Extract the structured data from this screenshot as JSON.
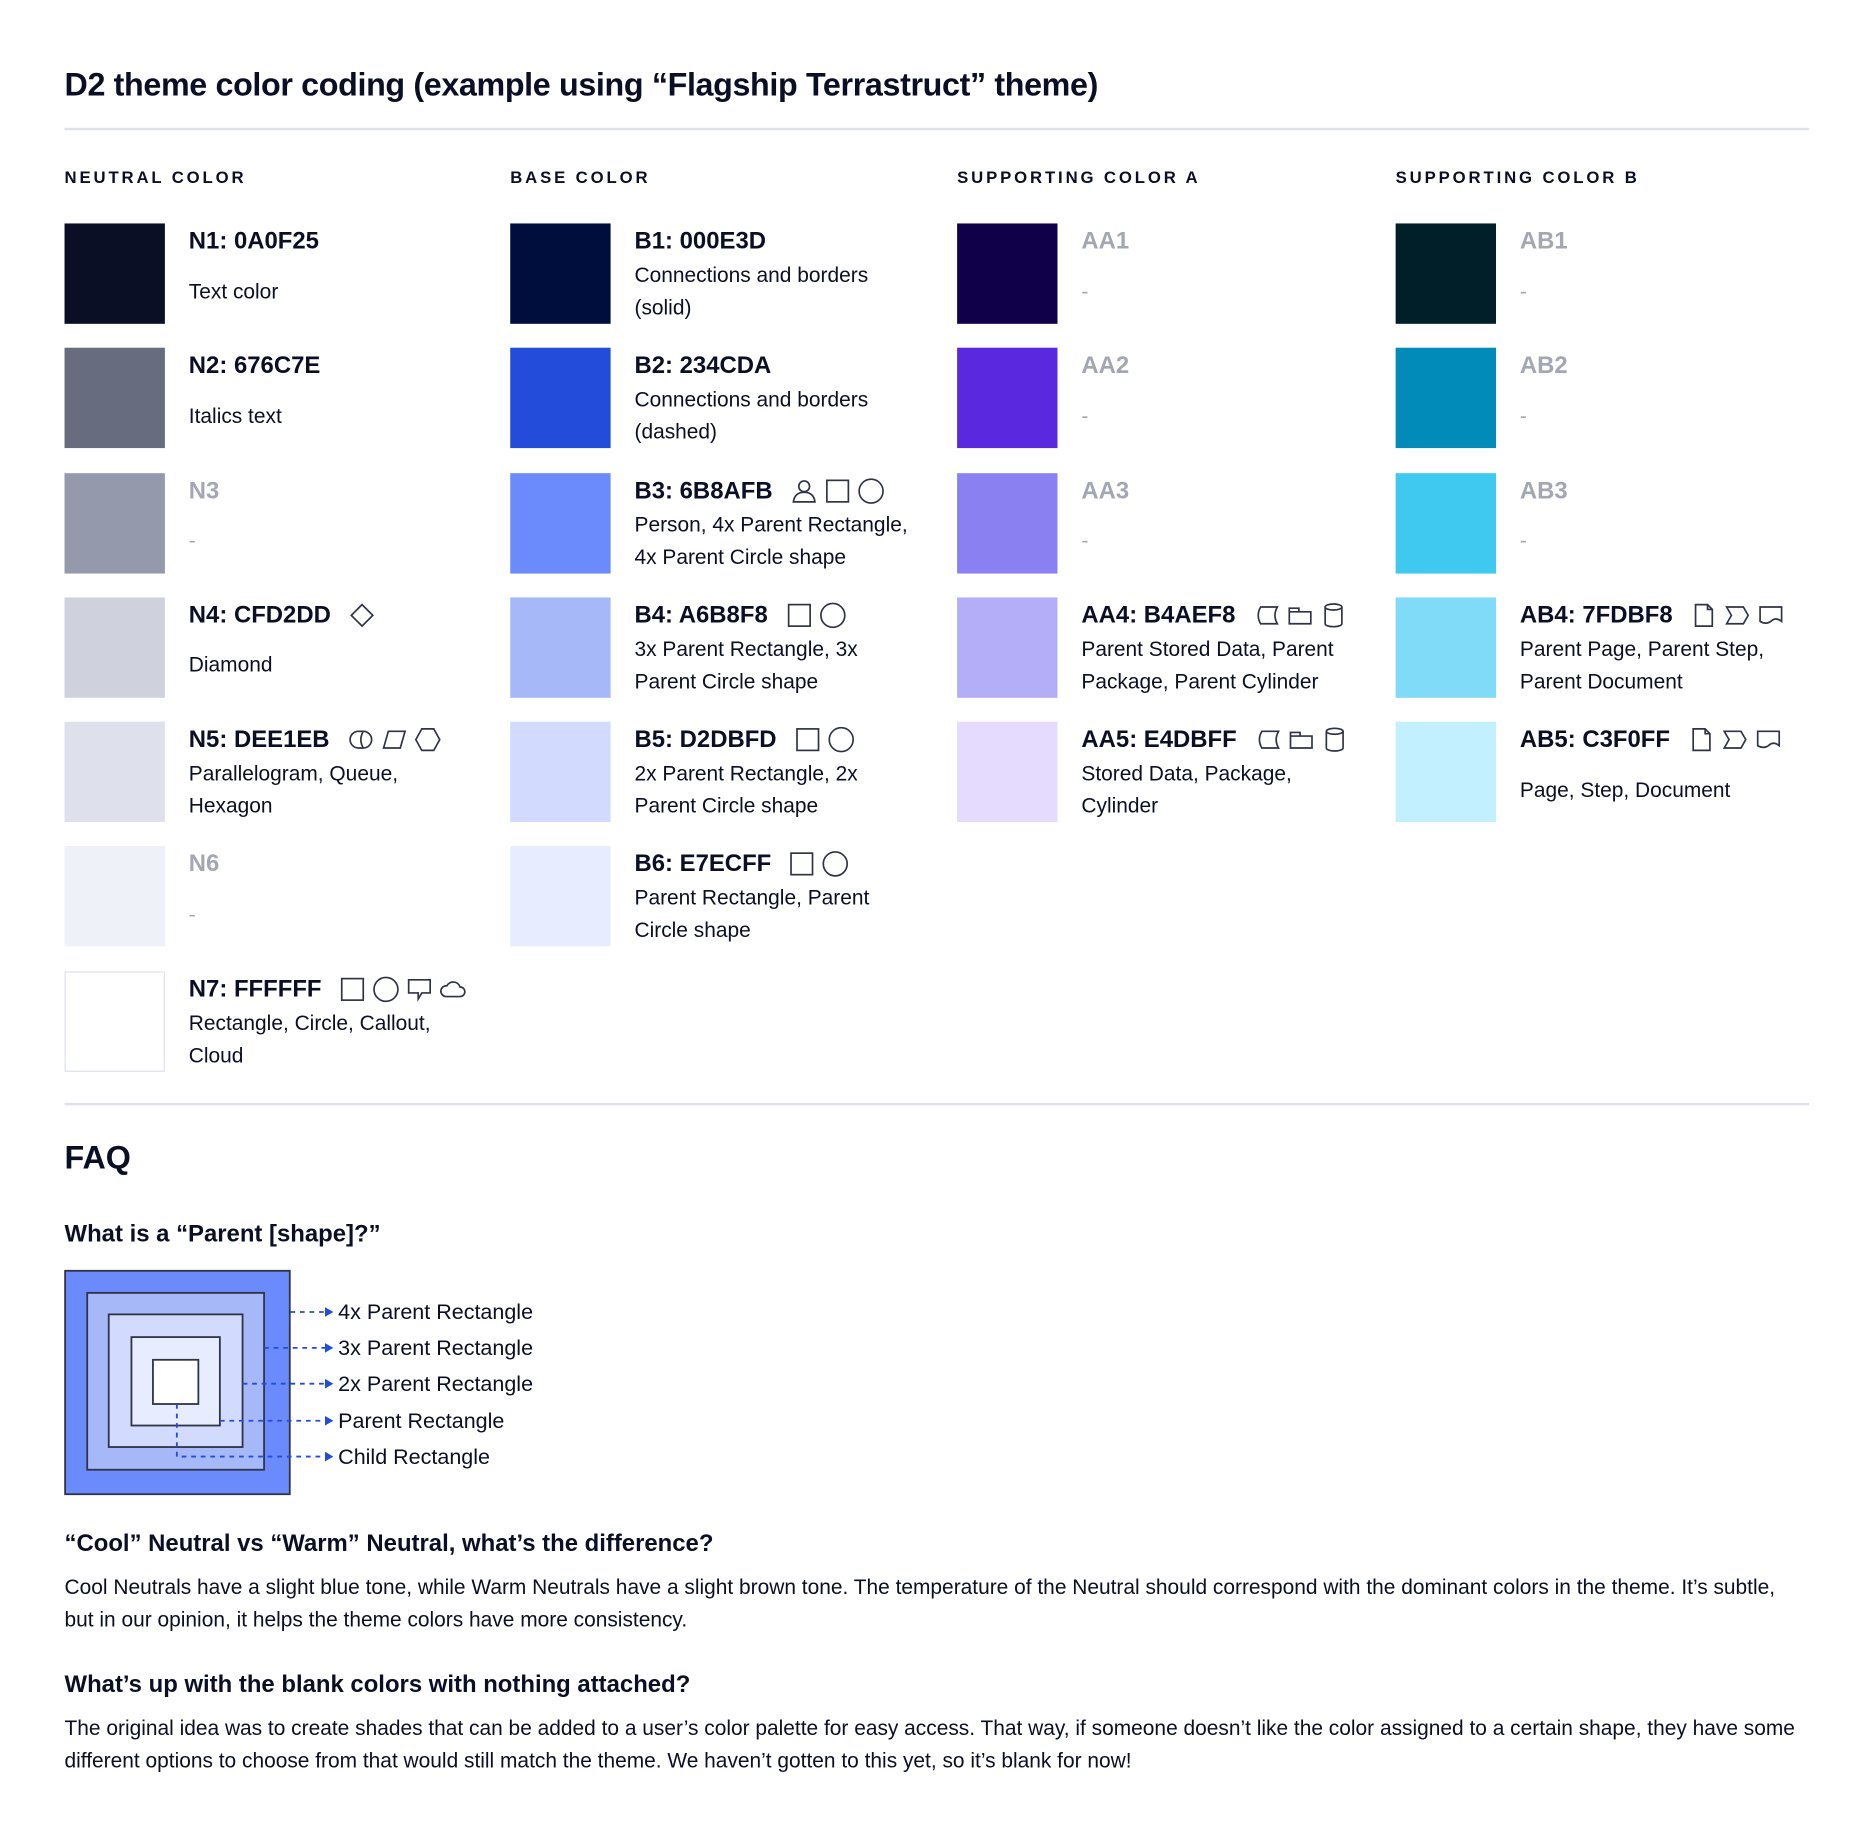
{
  "title": "D2 theme color coding (example using “Flagship Terrastruct” theme)",
  "columns": [
    {
      "header": "NEUTRAL COLOR",
      "items": [
        {
          "label": "N1: 0A0F25",
          "color": "#0A0F25",
          "lines": [
            "Text color"
          ],
          "icons": []
        },
        {
          "label": "N2: 676C7E",
          "color": "#676C7E",
          "lines": [
            "Italics text"
          ],
          "icons": []
        },
        {
          "label": "N3",
          "color": "#9499AB",
          "lines": [
            "-"
          ],
          "icons": [],
          "empty": true
        },
        {
          "label": "N4: CFD2DD",
          "color": "#CFD2DD",
          "lines": [
            "Diamond"
          ],
          "icons": [
            "diamond"
          ]
        },
        {
          "label": "N5: DEE1EB",
          "color": "#DEE1EB",
          "lines": [
            "Parallelogram, Queue,",
            "Hexagon"
          ],
          "icons": [
            "queue",
            "parallelogram",
            "hexagon"
          ]
        },
        {
          "label": "N6",
          "color": "#EEF1F8",
          "lines": [
            "-"
          ],
          "icons": [],
          "empty": true
        },
        {
          "label": "N7: FFFFFF",
          "color": "#FFFFFF",
          "lines": [
            "Rectangle, Circle, Callout,",
            "Cloud"
          ],
          "icons": [
            "rectangle",
            "circle",
            "callout",
            "cloud"
          ]
        }
      ]
    },
    {
      "header": "BASE COLOR",
      "items": [
        {
          "label": "B1: 000E3D",
          "color": "#000E3D",
          "lines": [
            "Connections and borders",
            "(solid)"
          ],
          "icons": []
        },
        {
          "label": "B2: 234CDA",
          "color": "#234CDA",
          "lines": [
            "Connections and borders",
            "(dashed)"
          ],
          "icons": []
        },
        {
          "label": "B3: 6B8AFB",
          "color": "#6B8AFB",
          "lines": [
            "Person, 4x Parent Rectangle,",
            "4x Parent Circle shape"
          ],
          "icons": [
            "person",
            "rectangle",
            "circle"
          ]
        },
        {
          "label": "B4: A6B8F8",
          "color": "#A6B8F8",
          "lines": [
            "3x Parent Rectangle, 3x",
            "Parent Circle shape"
          ],
          "icons": [
            "rectangle",
            "circle"
          ]
        },
        {
          "label": "B5: D2DBFD",
          "color": "#D2DBFD",
          "lines": [
            "2x Parent Rectangle, 2x",
            "Parent Circle shape"
          ],
          "icons": [
            "rectangle",
            "circle"
          ]
        },
        {
          "label": "B6: E7ECFF",
          "color": "#E7ECFF",
          "lines": [
            "Parent Rectangle, Parent",
            "Circle shape"
          ],
          "icons": [
            "rectangle",
            "circle"
          ]
        }
      ]
    },
    {
      "header": "SUPPORTING COLOR A",
      "items": [
        {
          "label": "AA1",
          "color": "#10004A",
          "lines": [
            "-"
          ],
          "icons": [],
          "empty": true
        },
        {
          "label": "AA2",
          "color": "#5A28DE",
          "lines": [
            "-"
          ],
          "icons": [],
          "empty": true
        },
        {
          "label": "AA3",
          "color": "#8A80F2",
          "lines": [
            "-"
          ],
          "icons": [],
          "empty": true
        },
        {
          "label": "AA4: B4AEF8",
          "color": "#B4AEF8",
          "lines": [
            "Parent Stored Data, Parent",
            "Package,  Parent Cylinder"
          ],
          "icons": [
            "stored-data",
            "package",
            "cylinder"
          ]
        },
        {
          "label": "AA5: E4DBFF",
          "color": "#E4DBFF",
          "lines": [
            "Stored Data, Package,",
            "Cylinder"
          ],
          "icons": [
            "stored-data",
            "package",
            "cylinder"
          ]
        }
      ]
    },
    {
      "header": "SUPPORTING COLOR B",
      "items": [
        {
          "label": "AB1",
          "color": "#011F29",
          "lines": [
            "-"
          ],
          "icons": [],
          "empty": true
        },
        {
          "label": "AB2",
          "color": "#008BB8",
          "lines": [
            "-"
          ],
          "icons": [],
          "empty": true
        },
        {
          "label": "AB3",
          "color": "#3FC8F0",
          "lines": [
            "-"
          ],
          "icons": [],
          "empty": true
        },
        {
          "label": "AB4: 7FDBF8",
          "color": "#7FDBF8",
          "lines": [
            "Parent Page, Parent Step,",
            "Parent Document"
          ],
          "icons": [
            "page",
            "step",
            "document"
          ]
        },
        {
          "label": "AB5: C3F0FF",
          "color": "#C3F0FF",
          "lines": [
            "Page, Step, Document"
          ],
          "icons": [
            "page",
            "step",
            "document"
          ]
        }
      ]
    }
  ],
  "faq": {
    "title": "FAQ",
    "q1": "What is a “Parent [shape]?”",
    "diagram_labels": [
      "4x Parent Rectangle",
      "3x Parent Rectangle",
      "2x Parent Rectangle",
      "Parent Rectangle",
      "Child Rectangle"
    ],
    "q2": "“Cool” Neutral vs “Warm” Neutral, what’s the difference?",
    "a2": "Cool Neutrals have a slight blue tone, while Warm Neutrals have a slight brown tone. The temperature of the Neutral should correspond with the dominant colors in the theme. It’s subtle, but in our opinion, it helps the theme colors have more consistency.",
    "q3": "What’s up with the blank colors with nothing attached?",
    "a3": "The original idea was to create shades that can be added to a user’s color palette for easy access. That way, if someone doesn’t like the color assigned to a certain shape, they have some different options to choose from that would still match the theme. We haven’t gotten to this yet, so it’s blank for now!"
  },
  "colors": {
    "text": "#0A0F25",
    "divider": "#DEE1EB",
    "arrow": "#234CDA",
    "muted": "#A3A7B3"
  }
}
